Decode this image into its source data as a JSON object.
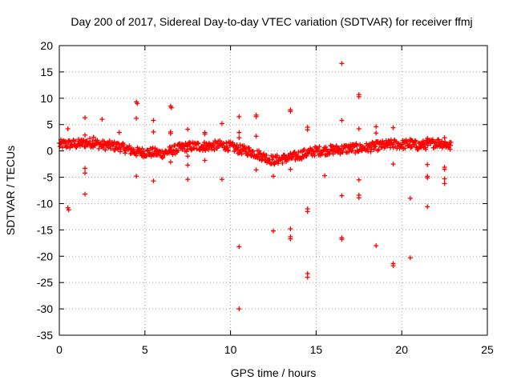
{
  "chart_data": {
    "type": "scatter",
    "title": "Day 200 of 2017, Sidereal Day-to-day VTEC variation (SDTVAR) for receiver ffmj",
    "xlabel": "GPS time / hours",
    "ylabel": "SDTVAR / TECUs",
    "xlim": [
      0,
      25
    ],
    "ylim": [
      -35,
      20
    ],
    "xticks": [
      0,
      5,
      10,
      15,
      20,
      25
    ],
    "yticks": [
      -35,
      -30,
      -25,
      -20,
      -15,
      -10,
      -5,
      0,
      5,
      10,
      15,
      20
    ],
    "grid": true,
    "marker": "+",
    "color": "#ff0000",
    "trend": [
      [
        0.0,
        1.2
      ],
      [
        0.5,
        1.3
      ],
      [
        1.0,
        1.3
      ],
      [
        1.5,
        1.5
      ],
      [
        2.0,
        1.6
      ],
      [
        2.5,
        1.1
      ],
      [
        3.0,
        1.0
      ],
      [
        3.5,
        0.8
      ],
      [
        4.0,
        0.3
      ],
      [
        4.5,
        -0.2
      ],
      [
        5.0,
        -0.3
      ],
      [
        5.5,
        -0.3
      ],
      [
        6.0,
        -0.5
      ],
      [
        6.5,
        0.0
      ],
      [
        7.0,
        0.5
      ],
      [
        7.5,
        0.8
      ],
      [
        8.0,
        0.9
      ],
      [
        8.5,
        0.9
      ],
      [
        9.0,
        1.0
      ],
      [
        9.5,
        1.1
      ],
      [
        10.0,
        0.8
      ],
      [
        10.5,
        0.3
      ],
      [
        11.0,
        0.0
      ],
      [
        11.5,
        -0.5
      ],
      [
        12.0,
        -1.2
      ],
      [
        12.5,
        -1.8
      ],
      [
        13.0,
        -1.5
      ],
      [
        13.5,
        -1.3
      ],
      [
        14.0,
        -0.8
      ],
      [
        14.5,
        -0.4
      ],
      [
        15.0,
        0.0
      ],
      [
        15.5,
        0.1
      ],
      [
        16.0,
        0.2
      ],
      [
        16.5,
        0.3
      ],
      [
        17.0,
        0.5
      ],
      [
        17.5,
        0.5
      ],
      [
        18.0,
        0.6
      ],
      [
        18.5,
        0.9
      ],
      [
        19.0,
        1.1
      ],
      [
        19.5,
        1.3
      ],
      [
        20.0,
        1.2
      ],
      [
        20.5,
        1.3
      ],
      [
        21.0,
        1.0
      ],
      [
        21.5,
        1.2
      ],
      [
        22.0,
        1.6
      ],
      [
        22.5,
        1.4
      ],
      [
        22.9,
        0.8
      ]
    ],
    "outliers": [
      [
        0.5,
        4.2
      ],
      [
        0.5,
        -10.8
      ],
      [
        0.55,
        -11.2
      ],
      [
        1.5,
        6.3
      ],
      [
        1.5,
        3.0
      ],
      [
        1.5,
        -3.3
      ],
      [
        1.5,
        -4.2
      ],
      [
        1.5,
        -8.2
      ],
      [
        2.0,
        2.6
      ],
      [
        2.5,
        6.0
      ],
      [
        3.5,
        3.5
      ],
      [
        4.5,
        9.3
      ],
      [
        4.55,
        9.0
      ],
      [
        4.5,
        6.2
      ],
      [
        4.5,
        -4.8
      ],
      [
        5.5,
        5.8
      ],
      [
        5.5,
        3.6
      ],
      [
        5.5,
        -5.7
      ],
      [
        6.5,
        8.5
      ],
      [
        6.55,
        8.2
      ],
      [
        6.5,
        3.6
      ],
      [
        6.5,
        3.3
      ],
      [
        6.5,
        -2.1
      ],
      [
        7.5,
        4.1
      ],
      [
        7.5,
        -1.0
      ],
      [
        7.5,
        -2.7
      ],
      [
        7.5,
        -5.4
      ],
      [
        8.5,
        3.5
      ],
      [
        8.5,
        3.2
      ],
      [
        8.5,
        -1.8
      ],
      [
        9.5,
        5.2
      ],
      [
        9.5,
        -5.4
      ],
      [
        10.5,
        6.5
      ],
      [
        10.5,
        3.5
      ],
      [
        10.5,
        2.5
      ],
      [
        10.5,
        -18.2
      ],
      [
        10.5,
        -30.0
      ],
      [
        11.5,
        6.8
      ],
      [
        11.5,
        6.5
      ],
      [
        11.5,
        2.8
      ],
      [
        11.5,
        -3.6
      ],
      [
        12.5,
        -4.8
      ],
      [
        12.5,
        -15.2
      ],
      [
        13.5,
        7.8
      ],
      [
        13.5,
        7.5
      ],
      [
        13.5,
        -3.5
      ],
      [
        13.5,
        -14.8
      ],
      [
        13.5,
        -16.3
      ],
      [
        13.5,
        -16.7
      ],
      [
        14.5,
        4.5
      ],
      [
        14.5,
        4.0
      ],
      [
        14.5,
        -11.0
      ],
      [
        14.5,
        -11.5
      ],
      [
        14.5,
        -23.3
      ],
      [
        14.5,
        -24.0
      ],
      [
        15.5,
        -4.7
      ],
      [
        16.5,
        16.6
      ],
      [
        16.5,
        5.8
      ],
      [
        16.5,
        -8.5
      ],
      [
        16.5,
        -16.5
      ],
      [
        16.5,
        -16.8
      ],
      [
        17.5,
        10.7
      ],
      [
        17.5,
        10.3
      ],
      [
        17.5,
        4.2
      ],
      [
        17.5,
        -5.5
      ],
      [
        17.5,
        -8.4
      ],
      [
        17.5,
        -8.9
      ],
      [
        18.5,
        4.6
      ],
      [
        18.5,
        3.4
      ],
      [
        18.5,
        -18.0
      ],
      [
        19.5,
        4.4
      ],
      [
        19.5,
        -2.5
      ],
      [
        19.5,
        -21.4
      ],
      [
        19.5,
        -21.8
      ],
      [
        20.5,
        2.2
      ],
      [
        20.5,
        -9.0
      ],
      [
        20.5,
        -20.3
      ],
      [
        21.5,
        2.4
      ],
      [
        21.5,
        -2.6
      ],
      [
        21.5,
        -4.8
      ],
      [
        21.5,
        -5.1
      ],
      [
        21.5,
        -10.6
      ],
      [
        22.5,
        2.5
      ],
      [
        22.5,
        -3.1
      ],
      [
        22.5,
        -3.5
      ],
      [
        22.5,
        -5.3
      ],
      [
        22.5,
        -6.2
      ]
    ]
  }
}
